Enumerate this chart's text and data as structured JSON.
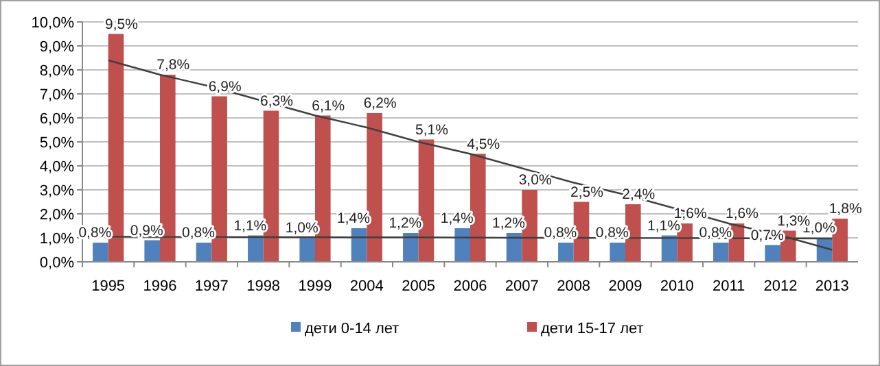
{
  "chart_data": {
    "type": "bar",
    "categories": [
      "1995",
      "1996",
      "1997",
      "1998",
      "1999",
      "2004",
      "2005",
      "2006",
      "2007",
      "2008",
      "2009",
      "2010",
      "2011",
      "2012",
      "2013"
    ],
    "series": [
      {
        "name": "дети 0-14 лет",
        "color": "#4f81bd",
        "values": [
          0.8,
          0.9,
          0.8,
          1.1,
          1.0,
          1.4,
          1.2,
          1.4,
          1.2,
          0.8,
          0.8,
          1.1,
          0.8,
          0.7,
          1.0
        ],
        "value_labels": [
          "0,8%",
          "0,9%",
          "0,8%",
          "1,1%",
          "1,0%",
          "1,4%",
          "1,2%",
          "1,4%",
          "1,2%",
          "0,8%",
          "0,8%",
          "1,1%",
          "0,8%",
          "0,7%",
          "1,0%"
        ]
      },
      {
        "name": "дети 15-17 лет",
        "color": "#c0504d",
        "values": [
          9.5,
          7.8,
          6.9,
          6.3,
          6.1,
          6.2,
          5.1,
          4.5,
          3.0,
          2.5,
          2.4,
          1.6,
          1.6,
          1.3,
          1.8
        ],
        "value_labels": [
          "9,5%",
          "7,8%",
          "6,9%",
          "6,3%",
          "6,1%",
          "6,2%",
          "5,1%",
          "4,5%",
          "3,0%",
          "2,5%",
          "2,4%",
          "1,6%",
          "1,6%",
          "1,3%",
          "1,8%"
        ]
      },
      {
        "type": "line",
        "color": "#404040",
        "values": [
          1.05,
          1.04,
          1.04,
          1.03,
          1.03,
          1.02,
          1.02,
          1.01,
          1.0,
          1.0,
          0.99,
          0.99,
          0.98,
          0.98,
          0.97
        ]
      },
      {
        "type": "line",
        "color": "#404040",
        "values": [
          8.4,
          7.8,
          7.3,
          6.7,
          6.1,
          5.6,
          5.0,
          4.5,
          3.9,
          3.3,
          2.8,
          2.2,
          1.6,
          1.1,
          0.5
        ]
      }
    ],
    "ylim": [
      0,
      10
    ],
    "yticks": [
      {
        "value": 0,
        "label": "0,0%"
      },
      {
        "value": 1,
        "label": "1,0%"
      },
      {
        "value": 2,
        "label": "2,0%"
      },
      {
        "value": 3,
        "label": "3,0%"
      },
      {
        "value": 4,
        "label": "4,0%"
      },
      {
        "value": 5,
        "label": "5,0%"
      },
      {
        "value": 6,
        "label": "6,0%"
      },
      {
        "value": 7,
        "label": "7,0%"
      },
      {
        "value": 8,
        "label": "8,0%"
      },
      {
        "value": 9,
        "label": "9,0%"
      },
      {
        "value": 10,
        "label": "10,0%"
      }
    ],
    "grid": "y",
    "legend": "bottom"
  }
}
